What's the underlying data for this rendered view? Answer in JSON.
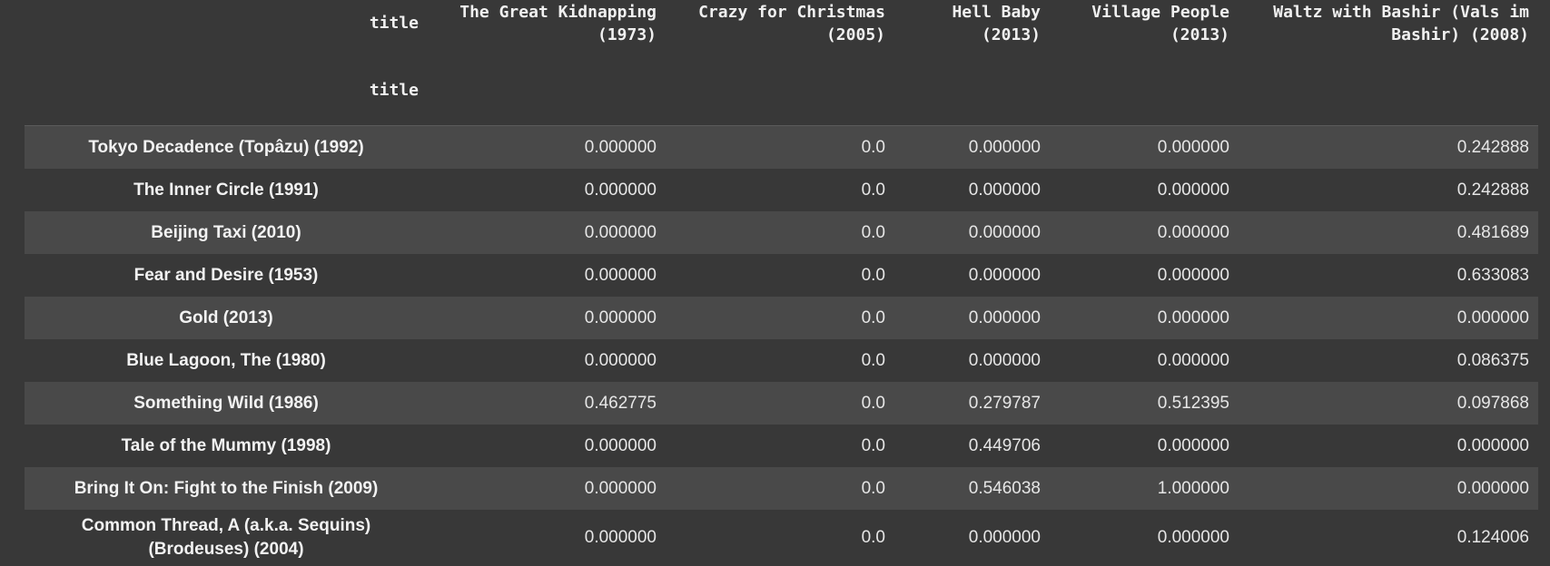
{
  "table": {
    "columns_name": "title",
    "index_name": "title",
    "columns": [
      "The Great Kidnapping (1973)",
      "Crazy for Christmas (2005)",
      "Hell Baby (2013)",
      "Village People (2013)",
      "Waltz with Bashir (Vals im Bashir) (2008)"
    ],
    "rows": [
      {
        "label": "Tokyo Decadence (Topâzu) (1992)",
        "values": [
          "0.000000",
          "0.0",
          "0.000000",
          "0.000000",
          "0.242888"
        ]
      },
      {
        "label": "The Inner Circle (1991)",
        "values": [
          "0.000000",
          "0.0",
          "0.000000",
          "0.000000",
          "0.242888"
        ]
      },
      {
        "label": "Beijing Taxi (2010)",
        "values": [
          "0.000000",
          "0.0",
          "0.000000",
          "0.000000",
          "0.481689"
        ]
      },
      {
        "label": "Fear and Desire (1953)",
        "values": [
          "0.000000",
          "0.0",
          "0.000000",
          "0.000000",
          "0.633083"
        ]
      },
      {
        "label": "Gold (2013)",
        "values": [
          "0.000000",
          "0.0",
          "0.000000",
          "0.000000",
          "0.000000"
        ]
      },
      {
        "label": "Blue Lagoon, The (1980)",
        "values": [
          "0.000000",
          "0.0",
          "0.000000",
          "0.000000",
          "0.086375"
        ]
      },
      {
        "label": "Something Wild (1986)",
        "values": [
          "0.462775",
          "0.0",
          "0.279787",
          "0.512395",
          "0.097868"
        ]
      },
      {
        "label": "Tale of the Mummy (1998)",
        "values": [
          "0.000000",
          "0.0",
          "0.449706",
          "0.000000",
          "0.000000"
        ]
      },
      {
        "label": "Bring It On: Fight to the Finish (2009)",
        "values": [
          "0.000000",
          "0.0",
          "0.546038",
          "1.000000",
          "0.000000"
        ]
      },
      {
        "label": "Common Thread, A (a.k.a. Sequins) (Brodeuses) (2004)",
        "values": [
          "0.000000",
          "0.0",
          "0.000000",
          "0.000000",
          "0.124006"
        ]
      }
    ]
  }
}
